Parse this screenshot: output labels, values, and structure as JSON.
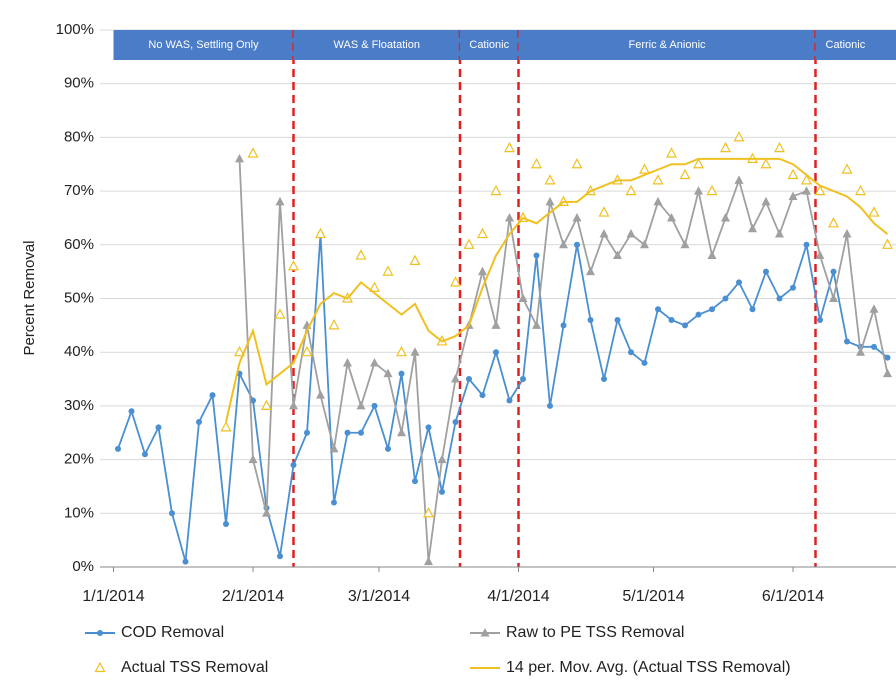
{
  "chart_data": {
    "type": "line",
    "ylabel": "Percent Removal",
    "ylim": [
      0,
      100
    ],
    "yticks": [
      {
        "value": 0,
        "label": "0%"
      },
      {
        "value": 10,
        "label": "10%"
      },
      {
        "value": 20,
        "label": "20%"
      },
      {
        "value": 30,
        "label": "30%"
      },
      {
        "value": 40,
        "label": "40%"
      },
      {
        "value": 50,
        "label": "50%"
      },
      {
        "value": 60,
        "label": "60%"
      },
      {
        "value": 70,
        "label": "70%"
      },
      {
        "value": 80,
        "label": "80%"
      },
      {
        "value": 90,
        "label": "90%"
      },
      {
        "value": 100,
        "label": "100%"
      }
    ],
    "xlim": [
      "2013-12-29",
      "2014-06-24"
    ],
    "xticks": [
      {
        "value": "2014-01-01",
        "label": "1/1/2014"
      },
      {
        "value": "2014-02-01",
        "label": "2/1/2014"
      },
      {
        "value": "2014-03-01",
        "label": "3/1/2014"
      },
      {
        "value": "2014-04-01",
        "label": "4/1/2014"
      },
      {
        "value": "2014-05-01",
        "label": "5/1/2014"
      },
      {
        "value": "2014-06-01",
        "label": "6/1/2014"
      }
    ],
    "grid": true,
    "phases": [
      {
        "label": "No WAS, Settling Only",
        "start": "2014-01-01",
        "end": "2014-02-10"
      },
      {
        "label": "WAS & Floatation",
        "start": "2014-02-10",
        "end": "2014-03-19"
      },
      {
        "label": "Cationic",
        "start": "2014-03-19",
        "end": "2014-04-01"
      },
      {
        "label": "Ferric & Anionic",
        "start": "2014-04-01",
        "end": "2014-06-06"
      },
      {
        "label": "Cationic",
        "start": "2014-06-06"
      }
    ],
    "x": [
      "2014-01-02",
      "2014-01-05",
      "2014-01-08",
      "2014-01-11",
      "2014-01-14",
      "2014-01-17",
      "2014-01-20",
      "2014-01-23",
      "2014-01-26",
      "2014-01-29",
      "2014-02-01",
      "2014-02-04",
      "2014-02-07",
      "2014-02-10",
      "2014-02-13",
      "2014-02-16",
      "2014-02-19",
      "2014-02-22",
      "2014-02-25",
      "2014-02-28",
      "2014-03-03",
      "2014-03-06",
      "2014-03-09",
      "2014-03-12",
      "2014-03-15",
      "2014-03-18",
      "2014-03-21",
      "2014-03-24",
      "2014-03-27",
      "2014-03-30",
      "2014-04-02",
      "2014-04-05",
      "2014-04-08",
      "2014-04-11",
      "2014-04-14",
      "2014-04-17",
      "2014-04-20",
      "2014-04-23",
      "2014-04-26",
      "2014-04-29",
      "2014-05-02",
      "2014-05-05",
      "2014-05-08",
      "2014-05-11",
      "2014-05-14",
      "2014-05-17",
      "2014-05-20",
      "2014-05-23",
      "2014-05-26",
      "2014-05-29",
      "2014-06-01",
      "2014-06-04",
      "2014-06-07",
      "2014-06-10",
      "2014-06-13",
      "2014-06-16",
      "2014-06-19",
      "2014-06-22"
    ],
    "series": [
      {
        "name": "COD Removal",
        "color": "#4a8fd1",
        "marker": "circle",
        "line": true,
        "values": [
          22,
          29,
          21,
          26,
          10,
          1,
          27,
          32,
          8,
          36,
          31,
          11,
          2,
          19,
          25,
          62,
          12,
          25,
          25,
          30,
          22,
          36,
          16,
          26,
          14,
          27,
          35,
          32,
          40,
          31,
          35,
          58,
          30,
          45,
          60,
          46,
          35,
          46,
          40,
          38,
          48,
          46,
          45,
          47,
          48,
          50,
          53,
          48,
          55,
          50,
          52,
          60,
          46,
          55,
          42,
          41,
          41,
          39
        ]
      },
      {
        "name": "Raw to PE TSS Removal",
        "color": "#a0a0a0",
        "marker": "triangle",
        "line": true,
        "values": [
          null,
          null,
          null,
          null,
          null,
          null,
          null,
          null,
          null,
          76,
          20,
          10,
          68,
          30,
          45,
          32,
          22,
          38,
          30,
          38,
          36,
          25,
          40,
          1,
          20,
          35,
          45,
          55,
          45,
          65,
          50,
          45,
          68,
          60,
          65,
          55,
          62,
          58,
          62,
          60,
          68,
          65,
          60,
          70,
          58,
          65,
          72,
          63,
          68,
          62,
          69,
          70,
          58,
          50,
          62,
          40,
          48,
          36
        ]
      },
      {
        "name": "Actual TSS Removal",
        "color": "#f0c020",
        "marker": "triangle-open",
        "line": false,
        "values": [
          null,
          null,
          null,
          null,
          null,
          null,
          null,
          null,
          26,
          40,
          77,
          30,
          47,
          56,
          40,
          62,
          45,
          50,
          58,
          52,
          55,
          40,
          57,
          10,
          42,
          53,
          60,
          62,
          70,
          78,
          65,
          75,
          72,
          68,
          75,
          70,
          66,
          72,
          70,
          74,
          72,
          77,
          73,
          75,
          70,
          78,
          80,
          76,
          75,
          78,
          73,
          72,
          70,
          64,
          74,
          70,
          66,
          60
        ]
      },
      {
        "name": "14 per. Mov. Avg. (Actual TSS Removal)",
        "color": "#f0c020",
        "marker": "none",
        "line": true,
        "values": [
          null,
          null,
          null,
          null,
          null,
          null,
          null,
          null,
          27,
          38,
          44,
          34,
          36,
          38,
          44,
          49,
          51,
          50,
          53,
          51,
          49,
          47,
          49,
          44,
          42,
          43,
          45,
          52,
          58,
          62,
          65,
          64,
          66,
          68,
          68,
          70,
          71,
          72,
          72,
          73,
          74,
          75,
          75,
          76,
          76,
          76,
          76,
          76,
          76,
          76,
          75,
          73,
          71,
          70,
          69,
          67,
          64,
          62
        ]
      }
    ]
  }
}
